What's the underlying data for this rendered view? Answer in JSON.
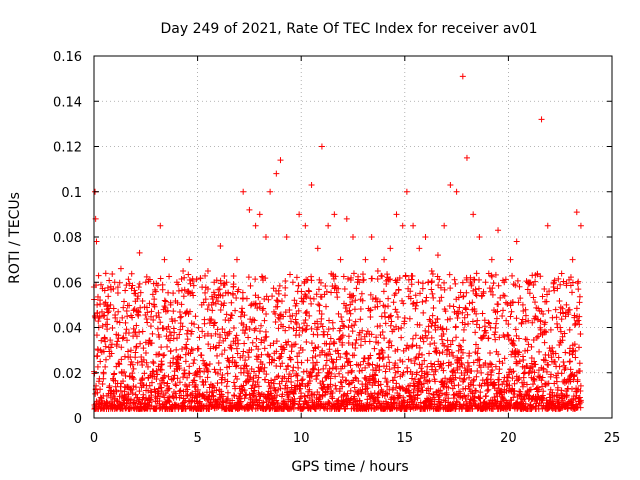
{
  "chart_data": {
    "type": "scatter",
    "title": "Day 249 of 2021, Rate Of TEC Index for receiver av01",
    "xlabel": "GPS time / hours",
    "ylabel": "ROTI / TECUs",
    "xlim": [
      0,
      25
    ],
    "ylim": [
      0,
      0.16
    ],
    "xticks": [
      0,
      5,
      10,
      15,
      20,
      25
    ],
    "xtick_labels": [
      "0",
      "5",
      "10",
      "15",
      "20",
      "25"
    ],
    "yticks": [
      0,
      0.02,
      0.04,
      0.06,
      0.08,
      0.1,
      0.12,
      0.14,
      0.16
    ],
    "ytick_labels": [
      "0",
      "0.02",
      "0.04",
      "0.06",
      "0.08",
      "0.1",
      "0.12",
      "0.14",
      "0.16"
    ],
    "grid": true,
    "marker": "plus",
    "color": "#ff0000",
    "series": [
      {
        "x": [
          0.05,
          0.08,
          0.12,
          0.15,
          0.2,
          0.3,
          0.5,
          0.8,
          1.0,
          1.3,
          1.6,
          2.0,
          2.2,
          2.5,
          2.9,
          3.2,
          3.4,
          3.7,
          4.0,
          4.3,
          4.6,
          4.9,
          5.2,
          5.5,
          5.8,
          6.1,
          6.4,
          6.7,
          6.9,
          7.2,
          7.5,
          7.8,
          8.0,
          8.3,
          8.5,
          8.8,
          9.0,
          9.3,
          9.6,
          9.9,
          10.2,
          10.5,
          10.8,
          11.0,
          11.3,
          11.6,
          11.9,
          12.2,
          12.5,
          12.8,
          13.1,
          13.4,
          13.7,
          14.0,
          14.3,
          14.6,
          14.9,
          15.1,
          15.4,
          15.7,
          16.0,
          16.3,
          16.6,
          16.9,
          17.2,
          17.5,
          17.8,
          18.0,
          18.3,
          18.6,
          18.9,
          19.2,
          19.5,
          19.8,
          20.1,
          20.4,
          20.7,
          21.0,
          21.3,
          21.6,
          21.9,
          22.2,
          22.5,
          22.8,
          23.1,
          23.3,
          23.5
        ],
        "y": [
          0.1,
          0.088,
          0.078,
          0.05,
          0.03,
          0.025,
          0.035,
          0.05,
          0.06,
          0.066,
          0.045,
          0.055,
          0.073,
          0.06,
          0.05,
          0.085,
          0.07,
          0.05,
          0.06,
          0.065,
          0.07,
          0.045,
          0.05,
          0.065,
          0.06,
          0.076,
          0.06,
          0.055,
          0.07,
          0.1,
          0.092,
          0.085,
          0.09,
          0.08,
          0.1,
          0.108,
          0.114,
          0.08,
          0.06,
          0.09,
          0.085,
          0.103,
          0.075,
          0.12,
          0.085,
          0.09,
          0.07,
          0.088,
          0.08,
          0.06,
          0.07,
          0.08,
          0.065,
          0.07,
          0.075,
          0.09,
          0.085,
          0.1,
          0.085,
          0.075,
          0.08,
          0.065,
          0.072,
          0.085,
          0.103,
          0.1,
          0.151,
          0.115,
          0.09,
          0.08,
          0.06,
          0.07,
          0.083,
          0.06,
          0.07,
          0.078,
          0.05,
          0.06,
          0.045,
          0.132,
          0.085,
          0.06,
          0.04,
          0.05,
          0.07,
          0.091,
          0.085
        ]
      }
    ]
  }
}
